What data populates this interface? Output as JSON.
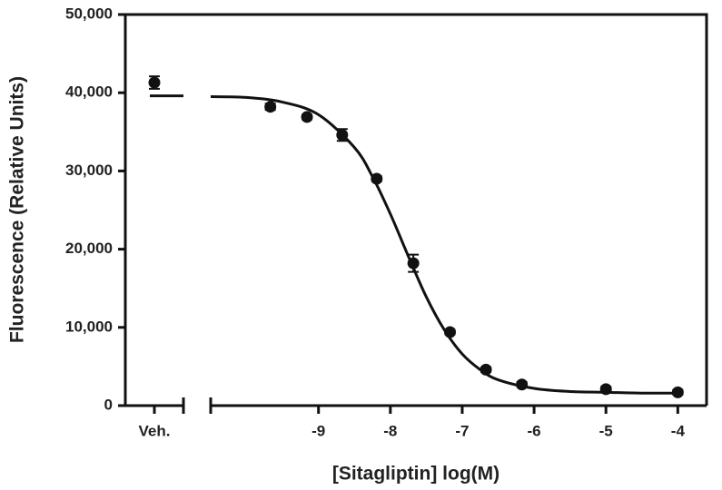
{
  "chart_data": {
    "type": "scatter",
    "xlabel": "[Sitagliptin] log(M)",
    "ylabel": "Fluorescence (Relative Units)",
    "xlim": [
      -10.5,
      -3.6
    ],
    "xticks": [
      -9,
      -8,
      -7,
      -6,
      -5,
      -4
    ],
    "ylim": [
      0,
      50000
    ],
    "yticks": [
      {
        "value": 0,
        "label": "0"
      },
      {
        "value": 10000,
        "label": "10,000"
      },
      {
        "value": 20000,
        "label": "20,000"
      },
      {
        "value": 30000,
        "label": "30,000"
      },
      {
        "value": 40000,
        "label": "40,000"
      },
      {
        "value": 50000,
        "label": "50,000"
      }
    ],
    "color": "#111111",
    "vehicle": {
      "label": "Veh.",
      "value": 41300,
      "error": 800,
      "fit": 39600
    },
    "series": [
      {
        "x": [
          -9.67,
          -9.16,
          -8.67,
          -8.19,
          -7.68,
          -7.17,
          -6.67,
          -6.17,
          -5,
          -4
        ],
        "values": [
          38200,
          36900,
          34600,
          29000,
          18200,
          9400,
          4600,
          2700,
          2100,
          1700
        ],
        "errors": [
          400,
          300,
          750,
          300,
          1100,
          300,
          300,
          300,
          300,
          300
        ]
      }
    ],
    "fit": {
      "x": [
        -10.5,
        -10,
        -9.5,
        -9,
        -8.5,
        -8.25,
        -8,
        -7.75,
        -7.5,
        -7.25,
        -7,
        -6.75,
        -6.5,
        -6,
        -5.5,
        -5,
        -4.5,
        -4
      ],
      "values": [
        39500,
        39400,
        38800,
        37200,
        33000,
        29300,
        24500,
        19100,
        13900,
        9700,
        6600,
        4600,
        3300,
        2200,
        1800,
        1700,
        1600,
        1600
      ]
    }
  }
}
